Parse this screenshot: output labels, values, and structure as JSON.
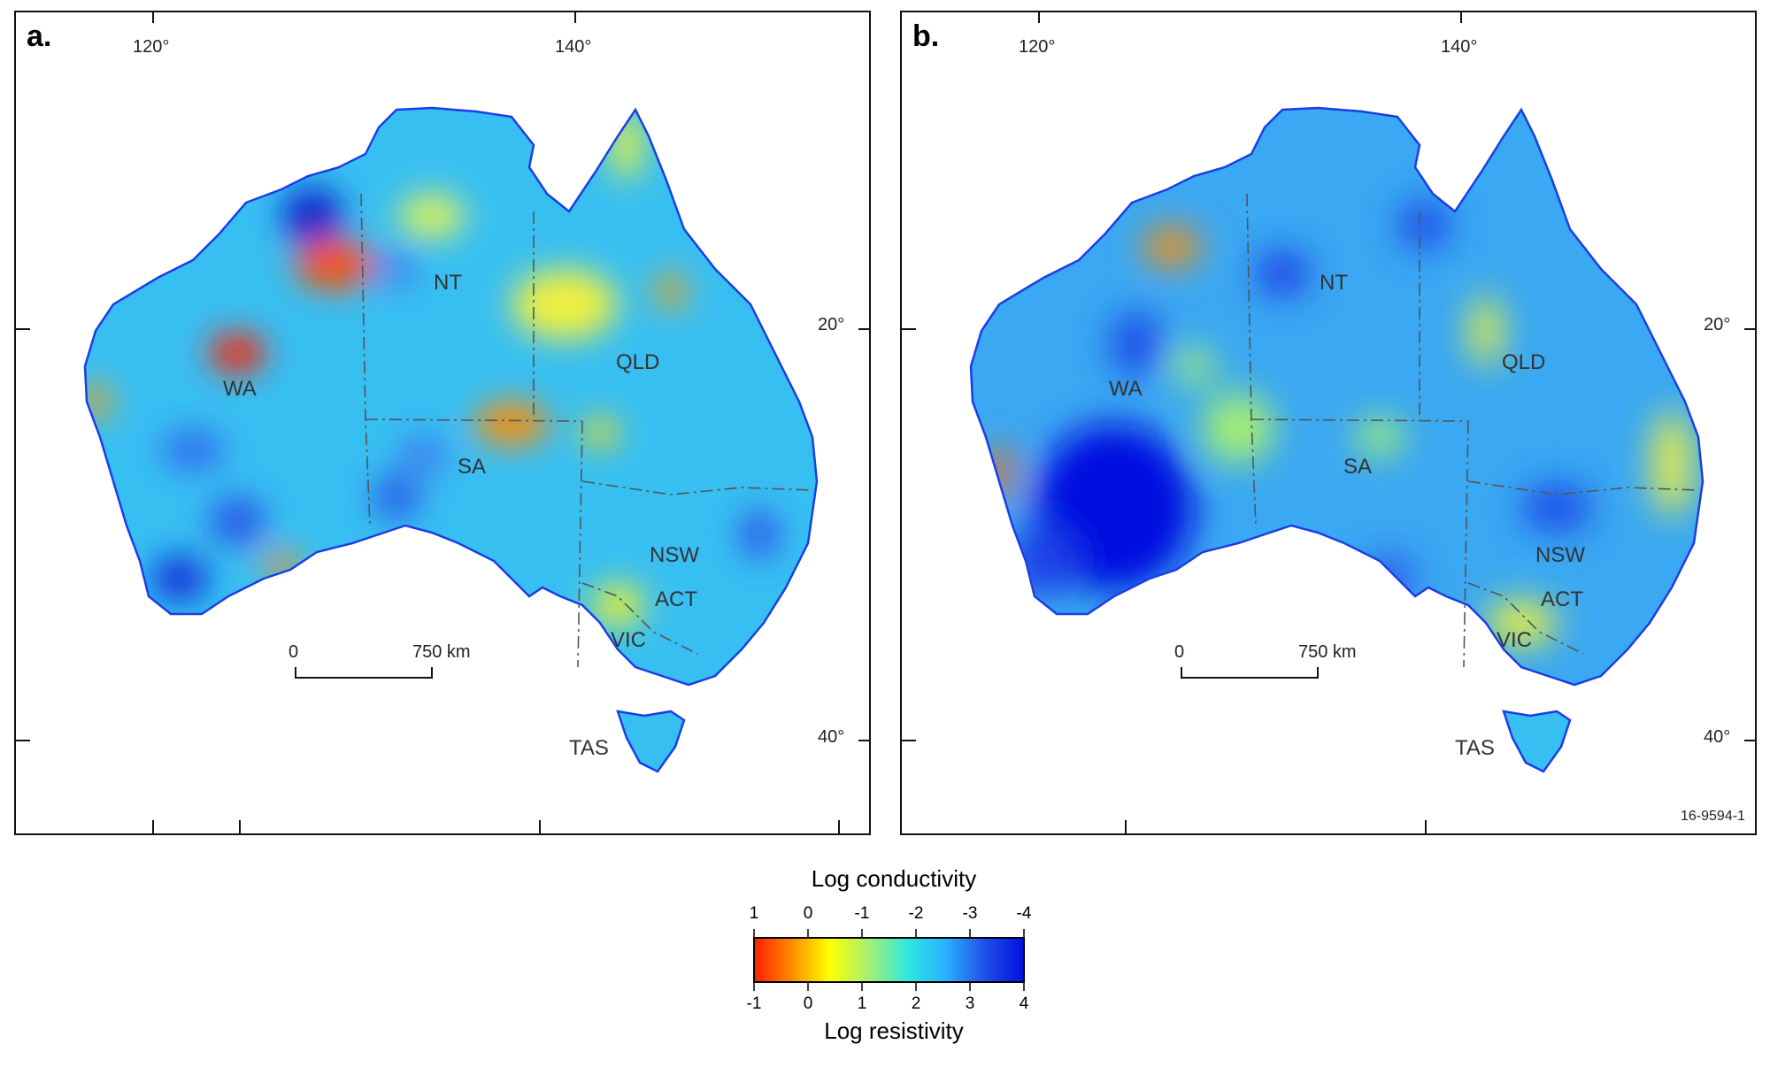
{
  "panels": [
    {
      "letter": "a.",
      "lon_labels": [
        "120°",
        "140°"
      ],
      "lat_labels": [
        "20°",
        "40°"
      ],
      "regions": [
        "NT",
        "QLD",
        "WA",
        "SA",
        "NSW",
        "ACT",
        "VIC",
        "TAS"
      ],
      "scalebar": {
        "start": "0",
        "end": "750 km"
      }
    },
    {
      "letter": "b.",
      "lon_labels": [
        "120°",
        "140°"
      ],
      "lat_labels": [
        "20°",
        "40°"
      ],
      "regions": [
        "NT",
        "QLD",
        "WA",
        "SA",
        "NSW",
        "ACT",
        "VIC",
        "TAS"
      ],
      "scalebar": {
        "start": "0",
        "end": "750 km"
      },
      "figure_code": "16-9594-1"
    }
  ],
  "legend": {
    "conductivity_title": "Log conductivity",
    "conductivity_ticks": [
      "1",
      "0",
      "-1",
      "-2",
      "-3",
      "-4"
    ],
    "resistivity_title": "Log resistivity",
    "resistivity_ticks": [
      "-1",
      "0",
      "1",
      "2",
      "3",
      "4"
    ],
    "colors": [
      "#ff2000",
      "#ff8c00",
      "#ffff00",
      "#a8f070",
      "#2ee8e0",
      "#2ab0ff",
      "#1e4de8",
      "#0010e0"
    ]
  },
  "map_colors": {
    "coastline": "#1a3ee6",
    "base_fill": "#38bff2",
    "borders": "#555555"
  }
}
